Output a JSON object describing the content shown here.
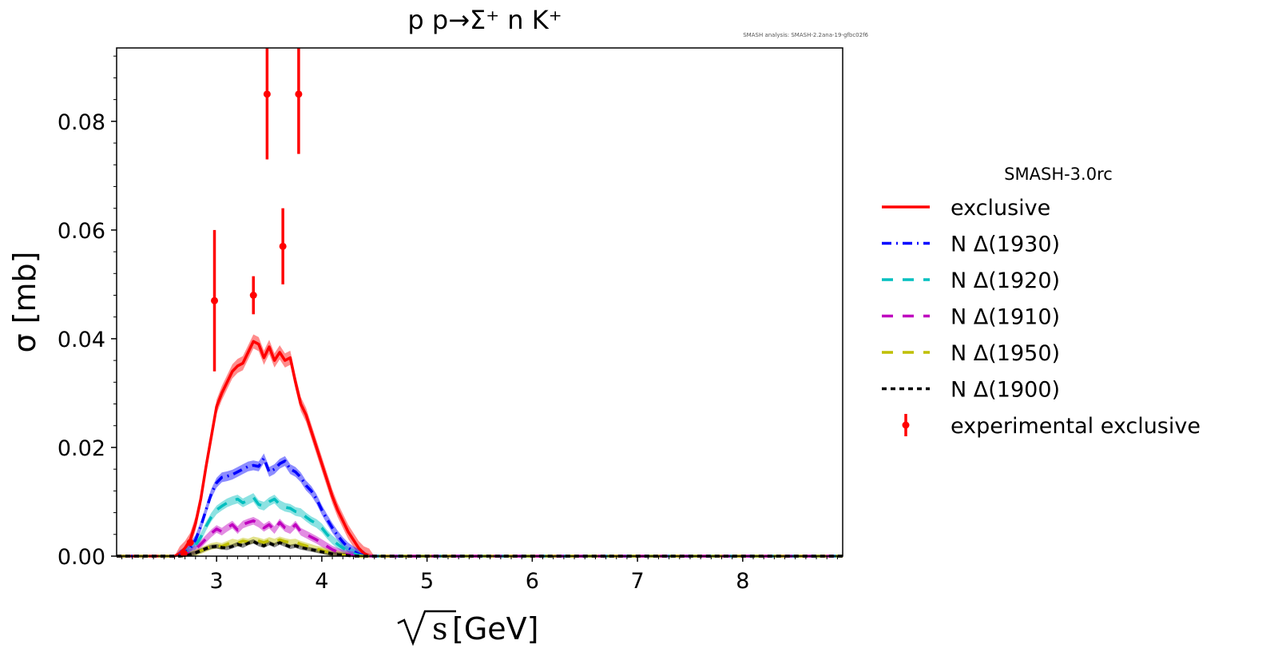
{
  "chart_data": {
    "type": "line",
    "title": "p p→Σ⁺ n K⁺",
    "watermark": "SMASH analysis: SMASH-2.2ana-19-gfbc02f6",
    "xlabel": "[GeV]",
    "xlabel_sqrt": "s",
    "ylabel": "σ [mb]",
    "xlim": [
      2.05,
      8.95
    ],
    "ylim": [
      0.0,
      0.0935
    ],
    "xticks": [
      3,
      4,
      5,
      6,
      7,
      8
    ],
    "xtick_labels": [
      "3",
      "4",
      "5",
      "6",
      "7",
      "8"
    ],
    "yticks": [
      0.0,
      0.02,
      0.04,
      0.06,
      0.08
    ],
    "ytick_labels": [
      "0.00",
      "0.02",
      "0.04",
      "0.06",
      "0.08"
    ],
    "legend": {
      "title": "SMASH-3.0rc",
      "position": "outside-right"
    },
    "grid": false,
    "x": [
      2.05,
      2.6,
      2.65,
      2.7,
      2.75,
      2.8,
      2.85,
      2.9,
      2.95,
      3.0,
      3.05,
      3.1,
      3.15,
      3.2,
      3.25,
      3.3,
      3.35,
      3.4,
      3.45,
      3.5,
      3.55,
      3.6,
      3.65,
      3.7,
      3.75,
      3.8,
      3.85,
      3.9,
      3.95,
      4.0,
      4.05,
      4.1,
      4.15,
      4.2,
      4.25,
      4.3,
      4.35,
      4.4,
      4.45,
      4.5,
      8.95
    ],
    "series": [
      {
        "name": "exclusive",
        "color": "#ff0000",
        "dash": "solid",
        "values": [
          0.0,
          0.0,
          0.0005,
          0.0015,
          0.003,
          0.006,
          0.0105,
          0.0165,
          0.022,
          0.0275,
          0.03,
          0.032,
          0.034,
          0.035,
          0.0355,
          0.0375,
          0.0395,
          0.039,
          0.0365,
          0.0385,
          0.036,
          0.0375,
          0.036,
          0.0365,
          0.032,
          0.028,
          0.026,
          0.023,
          0.02,
          0.017,
          0.014,
          0.011,
          0.0085,
          0.0065,
          0.0045,
          0.003,
          0.0015,
          0.0005,
          0.0001,
          0.0,
          0.0
        ],
        "band": 0.0013
      },
      {
        "name": "N Δ(1930)",
        "color": "#0000ff",
        "dash": "12,6,2,6",
        "values": [
          0.0,
          0.0,
          0.0002,
          0.0007,
          0.0015,
          0.003,
          0.0055,
          0.0085,
          0.0115,
          0.0135,
          0.0145,
          0.0147,
          0.015,
          0.0155,
          0.016,
          0.0165,
          0.0167,
          0.0165,
          0.018,
          0.0155,
          0.016,
          0.017,
          0.0175,
          0.016,
          0.0155,
          0.0145,
          0.013,
          0.012,
          0.0105,
          0.0085,
          0.0068,
          0.0052,
          0.0038,
          0.0026,
          0.0016,
          0.0009,
          0.0004,
          0.0001,
          0.0,
          0.0,
          0.0
        ],
        "band": 0.0009
      },
      {
        "name": "N Δ(1920)",
        "color": "#00bfbf",
        "dash": "14,12",
        "values": [
          0.0,
          0.0,
          0.0001,
          0.0004,
          0.001,
          0.002,
          0.0035,
          0.0055,
          0.0072,
          0.0085,
          0.0092,
          0.0098,
          0.0102,
          0.0105,
          0.0098,
          0.0103,
          0.0108,
          0.0095,
          0.0092,
          0.01,
          0.0105,
          0.0095,
          0.009,
          0.0088,
          0.0082,
          0.008,
          0.0072,
          0.0065,
          0.006,
          0.0052,
          0.004,
          0.003,
          0.0022,
          0.0015,
          0.0009,
          0.0005,
          0.0002,
          0.0,
          0.0,
          0.0,
          0.0
        ],
        "band": 0.0008
      },
      {
        "name": "N Δ(1910)",
        "color": "#bf00bf",
        "dash": "14,12",
        "values": [
          0.0,
          0.0,
          0.0001,
          0.0003,
          0.0007,
          0.0013,
          0.0022,
          0.0032,
          0.0042,
          0.005,
          0.0045,
          0.0052,
          0.0058,
          0.0048,
          0.0058,
          0.0062,
          0.0065,
          0.006,
          0.0052,
          0.0058,
          0.0048,
          0.0062,
          0.0052,
          0.0048,
          0.0058,
          0.0045,
          0.004,
          0.0035,
          0.003,
          0.0024,
          0.0018,
          0.0012,
          0.0008,
          0.0005,
          0.0003,
          0.0001,
          0.0,
          0.0,
          0.0,
          0.0,
          0.0
        ],
        "band": 0.0007
      },
      {
        "name": "N Δ(1950)",
        "color": "#bfbf00",
        "dash": "14,12",
        "values": [
          0.0,
          0.0,
          0.0,
          0.0001,
          0.0003,
          0.0006,
          0.001,
          0.0014,
          0.0018,
          0.002,
          0.0018,
          0.0022,
          0.0026,
          0.0024,
          0.0028,
          0.0026,
          0.003,
          0.0028,
          0.0025,
          0.0029,
          0.0026,
          0.003,
          0.0027,
          0.0025,
          0.0026,
          0.0022,
          0.0019,
          0.0016,
          0.0013,
          0.0011,
          0.0008,
          0.0006,
          0.0004,
          0.0002,
          0.0001,
          0.0,
          0.0,
          0.0,
          0.0,
          0.0,
          0.0
        ],
        "band": 0.0006
      },
      {
        "name": "N Δ(1900)",
        "color": "#000000",
        "dash": "6,5",
        "values": [
          0.0,
          0.0,
          0.0,
          0.0001,
          0.0003,
          0.0006,
          0.001,
          0.0014,
          0.0017,
          0.0018,
          0.0016,
          0.0015,
          0.0018,
          0.0022,
          0.0019,
          0.0024,
          0.0027,
          0.0022,
          0.0019,
          0.0024,
          0.002,
          0.0025,
          0.0021,
          0.0017,
          0.0019,
          0.0016,
          0.0014,
          0.0012,
          0.001,
          0.0008,
          0.0006,
          0.0004,
          0.0003,
          0.0002,
          0.0001,
          0.0,
          0.0,
          0.0,
          0.0,
          0.0,
          0.0
        ],
        "band": 0.0004
      }
    ],
    "experimental": {
      "name": "experimental exclusive",
      "color": "#ff0000",
      "points": [
        {
          "x": 2.69,
          "y": 0.0005,
          "err": 0.0003
        },
        {
          "x": 2.75,
          "y": 0.0025,
          "err": 0.0005
        },
        {
          "x": 2.98,
          "y": 0.047,
          "err": 0.013
        },
        {
          "x": 3.35,
          "y": 0.048,
          "err": 0.0035
        },
        {
          "x": 3.48,
          "y": 0.085,
          "err": 0.012
        },
        {
          "x": 3.63,
          "y": 0.057,
          "err": 0.007
        },
        {
          "x": 3.78,
          "y": 0.085,
          "err": 0.011
        }
      ]
    }
  }
}
